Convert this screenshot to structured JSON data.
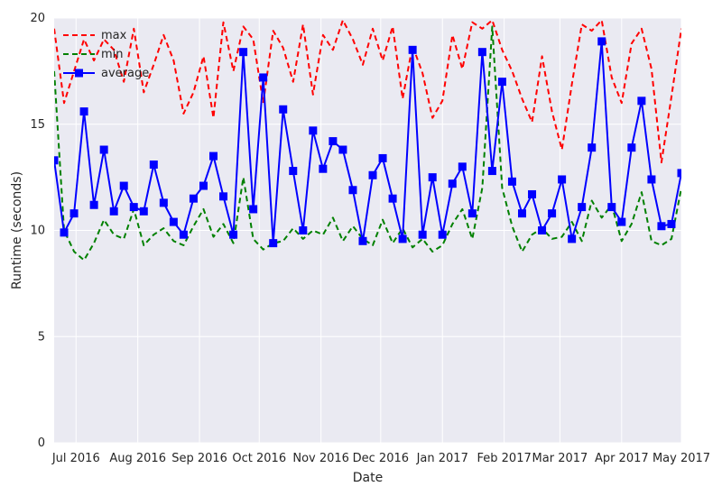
{
  "chart_data": {
    "type": "line",
    "title": "",
    "xlabel": "Date",
    "ylabel": "Runtime (seconds)",
    "ylim": [
      0,
      20
    ],
    "xlim": [
      "2016-06-20",
      "2017-05-01"
    ],
    "yticks": [
      0,
      5,
      10,
      15,
      20
    ],
    "xticks": [
      {
        "date": "2016-07-01",
        "label": "Jul 2016"
      },
      {
        "date": "2016-08-01",
        "label": "Aug 2016"
      },
      {
        "date": "2016-09-01",
        "label": "Sep 2016"
      },
      {
        "date": "2016-10-01",
        "label": "Oct 2016"
      },
      {
        "date": "2016-11-01",
        "label": "Nov 2016"
      },
      {
        "date": "2016-12-01",
        "label": "Dec 2016"
      },
      {
        "date": "2017-01-01",
        "label": "Jan 2017"
      },
      {
        "date": "2017-02-01",
        "label": "Feb 2017"
      },
      {
        "date": "2017-03-01",
        "label": "Mar 2017"
      },
      {
        "date": "2017-04-01",
        "label": "Apr 2017"
      },
      {
        "date": "2017-05-01",
        "label": "May 2017"
      }
    ],
    "grid": true,
    "legend_position": "top-left",
    "background": "#EAEAF2",
    "x": [
      "2016-06-20",
      "2016-06-25",
      "2016-06-30",
      "2016-07-05",
      "2016-07-10",
      "2016-07-15",
      "2016-07-20",
      "2016-07-25",
      "2016-07-30",
      "2016-08-04",
      "2016-08-09",
      "2016-08-14",
      "2016-08-19",
      "2016-08-24",
      "2016-08-29",
      "2016-09-03",
      "2016-09-08",
      "2016-09-13",
      "2016-09-18",
      "2016-09-23",
      "2016-09-28",
      "2016-10-03",
      "2016-10-08",
      "2016-10-13",
      "2016-10-18",
      "2016-10-23",
      "2016-10-28",
      "2016-11-02",
      "2016-11-07",
      "2016-11-12",
      "2016-11-17",
      "2016-11-22",
      "2016-11-27",
      "2016-12-02",
      "2016-12-07",
      "2016-12-12",
      "2016-12-17",
      "2016-12-22",
      "2016-12-27",
      "2017-01-01",
      "2017-01-06",
      "2017-01-11",
      "2017-01-16",
      "2017-01-21",
      "2017-01-26",
      "2017-01-31",
      "2017-02-05",
      "2017-02-10",
      "2017-02-15",
      "2017-02-20",
      "2017-02-25",
      "2017-03-02",
      "2017-03-07",
      "2017-03-12",
      "2017-03-17",
      "2017-03-22",
      "2017-03-27",
      "2017-04-01",
      "2017-04-06",
      "2017-04-11",
      "2017-04-16",
      "2017-04-21",
      "2017-04-26",
      "2017-05-01"
    ],
    "series": [
      {
        "name": "max",
        "color": "#FF0000",
        "style": "dashed",
        "values": [
          19.5,
          16.0,
          17.5,
          19.0,
          18.0,
          19.0,
          18.5,
          17.0,
          19.5,
          16.5,
          17.8,
          19.2,
          18.0,
          15.5,
          16.5,
          18.2,
          15.3,
          19.8,
          17.5,
          19.6,
          19.0,
          16.0,
          19.4,
          18.6,
          17.0,
          19.7,
          16.4,
          19.2,
          18.5,
          19.9,
          19.0,
          17.8,
          19.5,
          18.0,
          19.6,
          16.2,
          18.7,
          17.4,
          15.3,
          16.1,
          19.2,
          17.6,
          19.8,
          19.5,
          19.9,
          18.5,
          17.5,
          16.2,
          15.1,
          18.2,
          15.6,
          13.8,
          16.9,
          19.7,
          19.4,
          19.9,
          17.2,
          16.0,
          18.8,
          19.5,
          17.6,
          13.2,
          16.3,
          19.5
        ]
      },
      {
        "name": "min",
        "color": "#008000",
        "style": "dashed",
        "values": [
          17.5,
          10.0,
          9.0,
          8.6,
          9.4,
          10.5,
          9.8,
          9.6,
          11.0,
          9.3,
          9.8,
          10.1,
          9.5,
          9.3,
          10.2,
          11.0,
          9.7,
          10.3,
          9.4,
          12.5,
          9.6,
          9.1,
          9.4,
          9.5,
          10.1,
          9.6,
          10.0,
          9.8,
          10.6,
          9.5,
          10.2,
          9.6,
          9.3,
          10.5,
          9.4,
          10.1,
          9.2,
          9.6,
          9.0,
          9.3,
          10.3,
          11.0,
          9.6,
          12.0,
          19.6,
          12.0,
          10.2,
          9.0,
          9.8,
          10.1,
          9.6,
          9.7,
          10.4,
          9.5,
          11.4,
          10.6,
          11.2,
          9.5,
          10.3,
          11.8,
          9.5,
          9.3,
          9.6,
          12.0
        ]
      },
      {
        "name": "average",
        "color": "#0000FF",
        "style": "solid-square",
        "values": [
          13.3,
          9.9,
          10.8,
          15.6,
          11.2,
          13.8,
          10.9,
          12.1,
          11.1,
          10.9,
          13.1,
          11.3,
          10.4,
          9.8,
          11.5,
          12.1,
          13.5,
          11.6,
          9.8,
          18.4,
          11.0,
          17.2,
          9.4,
          15.7,
          12.8,
          10.0,
          14.7,
          12.9,
          14.2,
          13.8,
          11.9,
          9.5,
          12.6,
          13.4,
          11.5,
          9.6,
          18.5,
          9.8,
          12.5,
          9.8,
          12.2,
          13.0,
          10.8,
          18.4,
          12.8,
          17.0,
          12.3,
          10.8,
          11.7,
          10.0,
          10.8,
          12.4,
          9.6,
          11.1,
          13.9,
          18.9,
          11.1,
          10.4,
          13.9,
          16.1,
          12.4,
          10.2,
          10.3,
          12.7
        ]
      }
    ]
  }
}
